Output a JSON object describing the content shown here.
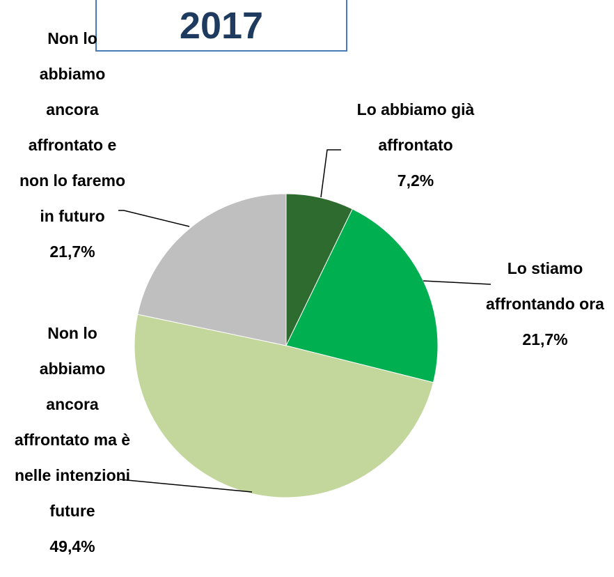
{
  "chart_data": {
    "type": "pie",
    "title": "2017",
    "categories": [
      "Lo abbiamo già affrontato",
      "Lo stiamo affrontando ora",
      "Non lo abbiamo ancora affrontato ma è nelle intenzioni future",
      "Non lo abbiamo ancora affrontato e non lo faremo in futuro"
    ],
    "values": [
      7.2,
      21.7,
      49.4,
      21.7
    ],
    "value_labels": [
      "7,2%",
      "21,7%",
      "49,4%",
      "21,7%"
    ],
    "colors": [
      "#2e6b2e",
      "#00b050",
      "#c3d69b",
      "#bfbfbf"
    ]
  }
}
